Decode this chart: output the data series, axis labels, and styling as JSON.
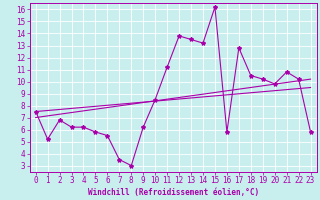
{
  "xlabel": "Windchill (Refroidissement éolien,°C)",
  "bg_color": "#c8eeee",
  "line_color": "#aa00aa",
  "grid_color": "#ffffff",
  "xlim": [
    -0.5,
    23.5
  ],
  "ylim": [
    2.5,
    16.5
  ],
  "xticks": [
    0,
    1,
    2,
    3,
    4,
    5,
    6,
    7,
    8,
    9,
    10,
    11,
    12,
    13,
    14,
    15,
    16,
    17,
    18,
    19,
    20,
    21,
    22,
    23
  ],
  "yticks": [
    3,
    4,
    5,
    6,
    7,
    8,
    9,
    10,
    11,
    12,
    13,
    14,
    15,
    16
  ],
  "line1_x": [
    0,
    1,
    2,
    3,
    4,
    5,
    6,
    7,
    8,
    9,
    10,
    11,
    12,
    13,
    14,
    15,
    16,
    17,
    18,
    19,
    20,
    21,
    22,
    23
  ],
  "line1_y": [
    7.5,
    5.2,
    6.8,
    6.2,
    6.2,
    5.8,
    5.5,
    3.5,
    3.0,
    6.2,
    8.5,
    11.2,
    13.8,
    13.5,
    13.2,
    16.2,
    5.8,
    12.8,
    10.5,
    10.2,
    9.8,
    10.8,
    10.2,
    5.8
  ],
  "line2_x": [
    0,
    23
  ],
  "line2_y": [
    7.0,
    10.2
  ],
  "line3_x": [
    0,
    23
  ],
  "line3_y": [
    7.5,
    9.5
  ],
  "marker": "*",
  "lw": 0.8,
  "markersize": 3.0,
  "tick_fontsize": 5.5,
  "xlabel_fontsize": 5.5
}
